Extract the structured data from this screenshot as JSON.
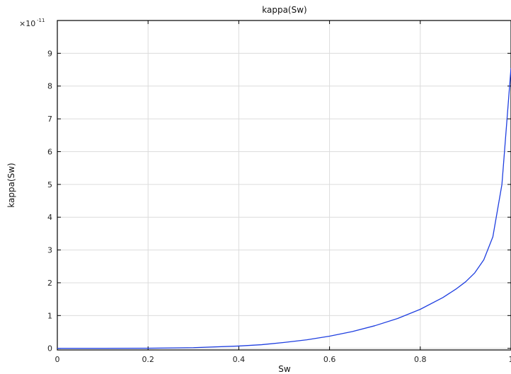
{
  "chart_data": {
    "type": "line",
    "title": "kappa(Sw)",
    "xlabel": "Sw",
    "ylabel": "kappa(Sw)",
    "y_multiplier": {
      "base": "×10",
      "exponent": "-11"
    },
    "xlim": [
      0,
      1
    ],
    "ylim": [
      -0.05,
      10
    ],
    "x_ticks": [
      "0",
      "0.2",
      "0.4",
      "0.6",
      "0.8",
      "1"
    ],
    "y_ticks": [
      "0",
      "1",
      "2",
      "3",
      "4",
      "5",
      "6",
      "7",
      "8",
      "9"
    ],
    "grid": true,
    "series": [
      {
        "color": "#1f3fe0",
        "x": [
          0,
          0.1,
          0.2,
          0.3,
          0.4,
          0.45,
          0.5,
          0.55,
          0.6,
          0.65,
          0.7,
          0.75,
          0.8,
          0.85,
          0.88,
          0.9,
          0.92,
          0.94,
          0.96,
          0.98,
          1.0
        ],
        "y": [
          0,
          0.0001,
          0.003,
          0.02,
          0.07,
          0.11,
          0.18,
          0.26,
          0.37,
          0.51,
          0.69,
          0.91,
          1.19,
          1.55,
          1.82,
          2.03,
          2.3,
          2.7,
          3.4,
          5.0,
          8.55
        ]
      }
    ]
  }
}
